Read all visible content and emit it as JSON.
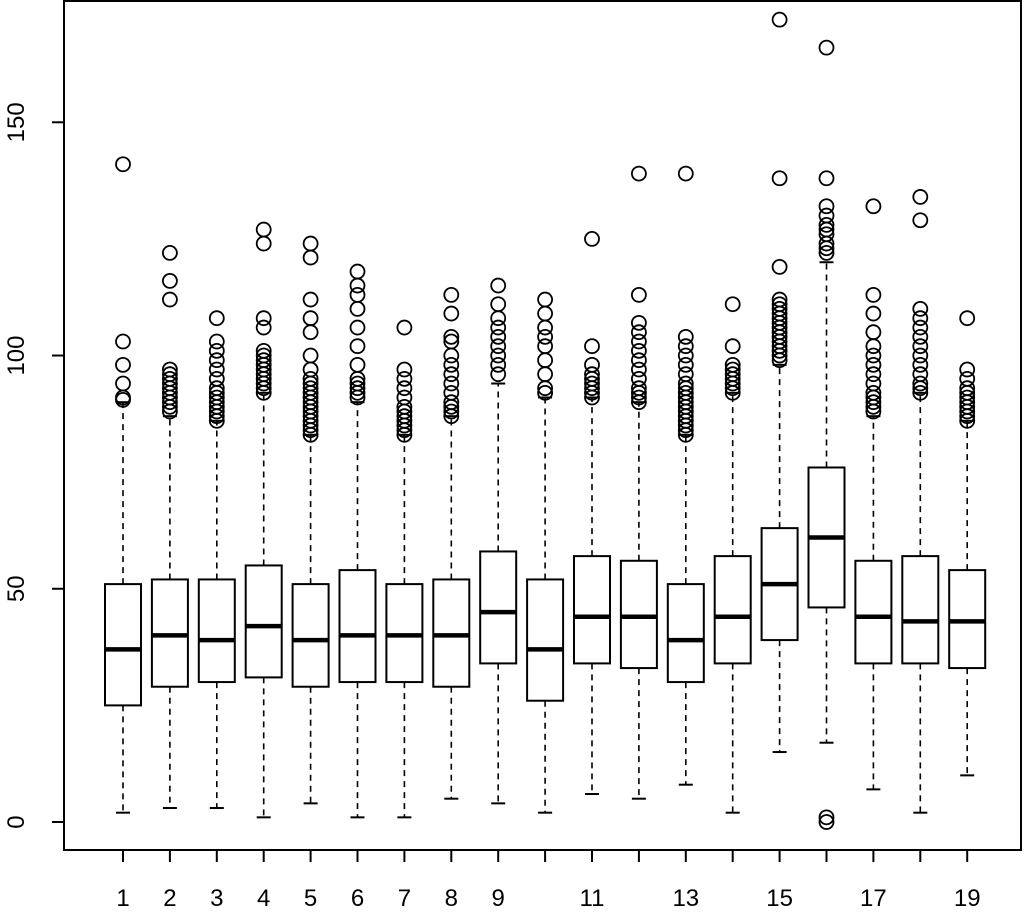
{
  "chart_data": {
    "type": "boxplot",
    "title": "",
    "xlabel": "",
    "ylabel": "",
    "ylim": [
      -6,
      176
    ],
    "y_ticks": [
      0,
      50,
      100,
      150
    ],
    "y_tick_labels": [
      "0",
      "50",
      "100",
      "150"
    ],
    "x_tick_labels": [
      "1",
      "2",
      "3",
      "4",
      "5",
      "6",
      "7",
      "8",
      "9",
      "",
      "11",
      "",
      "13",
      "",
      "15",
      "",
      "17",
      "",
      "19"
    ],
    "colors": {
      "stroke": "#000000",
      "background": "#ffffff"
    },
    "boxes": [
      {
        "category": "1",
        "lower_whisker": 2,
        "q1": 25,
        "median": 37,
        "q3": 51,
        "upper_whisker": 90,
        "outliers": [
          90.5,
          91,
          94,
          98,
          103,
          141
        ]
      },
      {
        "category": "2",
        "lower_whisker": 3,
        "q1": 29,
        "median": 40,
        "q3": 52,
        "upper_whisker": 87,
        "outliers": [
          88,
          89,
          90,
          91,
          92,
          93,
          94,
          95,
          96,
          97,
          112,
          116,
          122
        ]
      },
      {
        "category": "3",
        "lower_whisker": 3,
        "q1": 30,
        "median": 39,
        "q3": 52,
        "upper_whisker": 86,
        "outliers": [
          86,
          87,
          88,
          89,
          90,
          91,
          92,
          93,
          95,
          97,
          99,
          101,
          103,
          108
        ]
      },
      {
        "category": "4",
        "lower_whisker": 1,
        "q1": 31,
        "median": 42,
        "q3": 55,
        "upper_whisker": 92,
        "outliers": [
          92,
          93,
          94,
          95,
          96,
          97,
          98,
          99,
          100,
          101,
          106,
          108,
          124,
          127
        ]
      },
      {
        "category": "5",
        "lower_whisker": 4,
        "q1": 29,
        "median": 39,
        "q3": 51,
        "upper_whisker": 83,
        "outliers": [
          83,
          84,
          85,
          86,
          87,
          88,
          89,
          90,
          91,
          92,
          93,
          94,
          95,
          97,
          100,
          105,
          108,
          112,
          121,
          124
        ]
      },
      {
        "category": "6",
        "lower_whisker": 1,
        "q1": 30,
        "median": 40,
        "q3": 54,
        "upper_whisker": 90,
        "outliers": [
          91,
          92,
          93,
          94,
          95,
          98,
          102,
          106,
          110,
          113,
          115,
          118
        ]
      },
      {
        "category": "7",
        "lower_whisker": 1,
        "q1": 30,
        "median": 40,
        "q3": 51,
        "upper_whisker": 83,
        "outliers": [
          83,
          84,
          85,
          86,
          87,
          88,
          89,
          91,
          93,
          95,
          97,
          106
        ]
      },
      {
        "category": "8",
        "lower_whisker": 5,
        "q1": 29,
        "median": 40,
        "q3": 52,
        "upper_whisker": 87,
        "outliers": [
          87,
          88,
          89,
          90,
          92,
          94,
          96,
          98,
          100,
          103,
          104,
          109,
          113
        ]
      },
      {
        "category": "9",
        "lower_whisker": 4,
        "q1": 34,
        "median": 45,
        "q3": 58,
        "upper_whisker": 94,
        "outliers": [
          96,
          98,
          100,
          102,
          104,
          106,
          108,
          111,
          115
        ]
      },
      {
        "category": "10",
        "lower_whisker": 2,
        "q1": 26,
        "median": 37,
        "q3": 52,
        "upper_whisker": 91,
        "outliers": [
          92,
          93,
          96,
          99,
          102,
          104,
          106,
          109,
          112
        ]
      },
      {
        "category": "11",
        "lower_whisker": 6,
        "q1": 34,
        "median": 44,
        "q3": 57,
        "upper_whisker": 91,
        "outliers": [
          91,
          92,
          93,
          94,
          95,
          96,
          98,
          102,
          125
        ]
      },
      {
        "category": "12",
        "lower_whisker": 5,
        "q1": 33,
        "median": 44,
        "q3": 56,
        "upper_whisker": 90,
        "outliers": [
          90,
          91,
          92,
          93,
          95,
          97,
          99,
          101,
          103,
          105,
          107,
          113,
          139
        ]
      },
      {
        "category": "13",
        "lower_whisker": 8,
        "q1": 30,
        "median": 39,
        "q3": 51,
        "upper_whisker": 83,
        "outliers": [
          83,
          84,
          85,
          86,
          87,
          88,
          89,
          90,
          91,
          92,
          93,
          94,
          96,
          98,
          100,
          102,
          104,
          139
        ]
      },
      {
        "category": "14",
        "lower_whisker": 2,
        "q1": 34,
        "median": 44,
        "q3": 57,
        "upper_whisker": 92,
        "outliers": [
          92,
          93,
          94,
          95,
          96,
          97,
          98,
          102,
          111
        ]
      },
      {
        "category": "15",
        "lower_whisker": 15,
        "q1": 39,
        "median": 51,
        "q3": 63,
        "upper_whisker": 98,
        "outliers": [
          99,
          100,
          101,
          102,
          103,
          104,
          105,
          106,
          107,
          108,
          109,
          110,
          111,
          112,
          119,
          138,
          172
        ]
      },
      {
        "category": "16",
        "lower_whisker": 17,
        "q1": 46,
        "median": 61,
        "q3": 76,
        "upper_whisker": 120,
        "outliers": [
          0,
          1,
          122,
          123,
          124,
          126,
          127,
          128,
          130,
          132,
          138,
          166
        ]
      },
      {
        "category": "17",
        "lower_whisker": 7,
        "q1": 34,
        "median": 44,
        "q3": 56,
        "upper_whisker": 87,
        "outliers": [
          88,
          89,
          90,
          91,
          92,
          94,
          96,
          98,
          100,
          102,
          105,
          109,
          113,
          132
        ]
      },
      {
        "category": "18",
        "lower_whisker": 2,
        "q1": 34,
        "median": 43,
        "q3": 57,
        "upper_whisker": 92,
        "outliers": [
          92,
          93,
          94,
          96,
          98,
          100,
          102,
          104,
          106,
          108,
          110,
          129,
          134
        ]
      },
      {
        "category": "19",
        "lower_whisker": 10,
        "q1": 33,
        "median": 43,
        "q3": 54,
        "upper_whisker": 86,
        "outliers": [
          86,
          87,
          88,
          89,
          90,
          91,
          92,
          93,
          95,
          97,
          108
        ]
      }
    ]
  }
}
